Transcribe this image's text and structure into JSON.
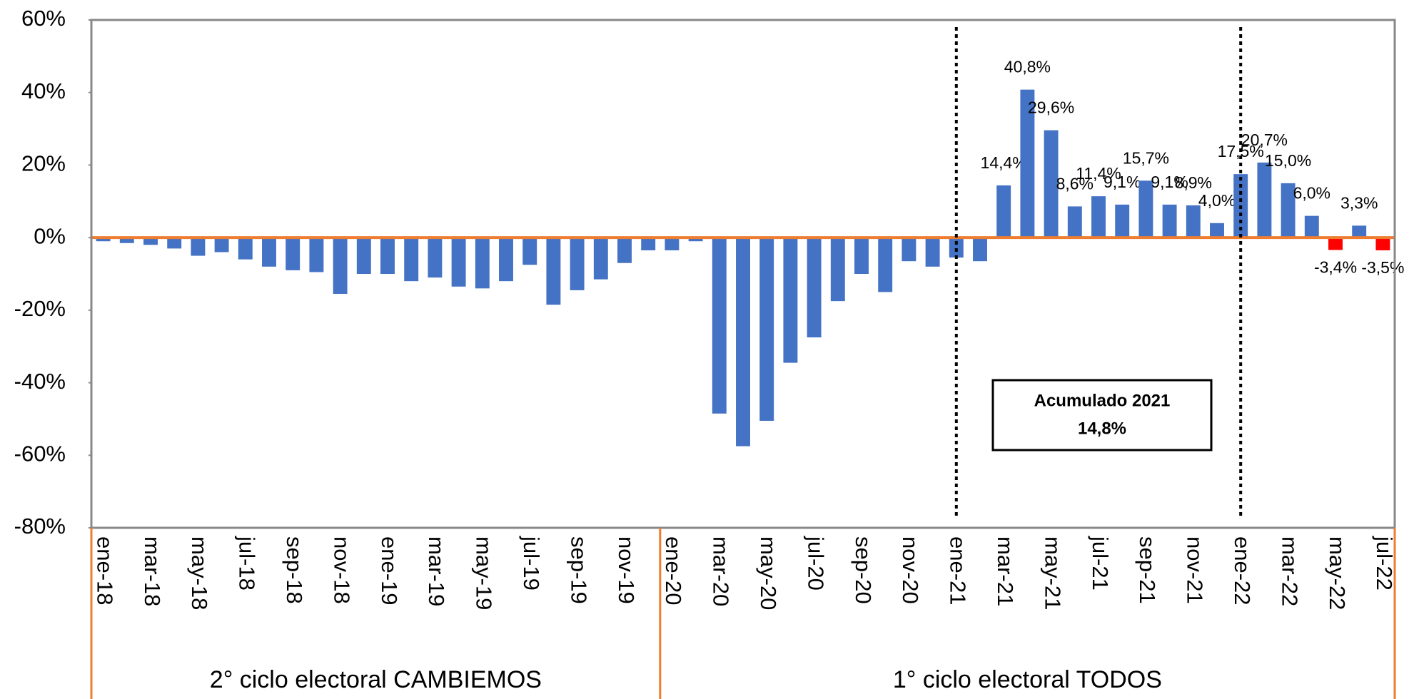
{
  "chart_data": {
    "type": "bar",
    "categories": [
      "ene-18",
      null,
      "mar-18",
      null,
      "may-18",
      null,
      "jul-18",
      null,
      "sep-18",
      null,
      "nov-18",
      null,
      "ene-19",
      null,
      "mar-19",
      null,
      "may-19",
      null,
      "jul-19",
      null,
      "sep-19",
      null,
      "nov-19",
      null,
      "ene-20",
      null,
      "mar-20",
      null,
      "may-20",
      null,
      "jul-20",
      null,
      "sep-20",
      null,
      "nov-20",
      null,
      "ene-21",
      null,
      "mar-21",
      null,
      "may-21",
      null,
      "jul-21",
      null,
      "sep-21",
      null,
      "nov-21",
      null,
      "ene-22",
      null,
      "mar-22",
      null,
      "may-22",
      null,
      "jul-22"
    ],
    "values": [
      -1,
      -1.5,
      -2,
      -3,
      -5,
      -4,
      -6,
      -8,
      -9,
      -9.5,
      -15.5,
      -10,
      -10,
      -12,
      -11,
      -13.5,
      -14,
      -12,
      -7.5,
      -18.5,
      -14.5,
      -11.5,
      -7,
      -3.5,
      -3.5,
      -1,
      -48.5,
      -57.5,
      -50.5,
      -34.5,
      -27.5,
      -17.5,
      -10,
      -15,
      -6.5,
      -8,
      -5.5,
      -6.5,
      14.4,
      40.8,
      29.6,
      8.6,
      11.4,
      9.1,
      15.7,
      9.1,
      8.9,
      4.0,
      17.5,
      20.7,
      15.0,
      6.0,
      -3.4,
      3.3,
      -3.5
    ],
    "value_labels": [
      null,
      null,
      null,
      null,
      null,
      null,
      null,
      null,
      null,
      null,
      null,
      null,
      null,
      null,
      null,
      null,
      null,
      null,
      null,
      null,
      null,
      null,
      null,
      null,
      null,
      null,
      null,
      null,
      null,
      null,
      null,
      null,
      null,
      null,
      null,
      null,
      null,
      null,
      "14,4%",
      "40,8%",
      "29,6%",
      "8,6%",
      "11,4%",
      "9,1%",
      "15,7%",
      "9,1%",
      "8,9%",
      "4,0%",
      "17,5%",
      "20,7%",
      "15,0%",
      "6,0%",
      "-3,4%",
      "3,3%",
      "-3,5%"
    ],
    "colors": [
      "#4472c4",
      "#4472c4",
      "#4472c4",
      "#4472c4",
      "#4472c4",
      "#4472c4",
      "#4472c4",
      "#4472c4",
      "#4472c4",
      "#4472c4",
      "#4472c4",
      "#4472c4",
      "#4472c4",
      "#4472c4",
      "#4472c4",
      "#4472c4",
      "#4472c4",
      "#4472c4",
      "#4472c4",
      "#4472c4",
      "#4472c4",
      "#4472c4",
      "#4472c4",
      "#4472c4",
      "#4472c4",
      "#4472c4",
      "#4472c4",
      "#4472c4",
      "#4472c4",
      "#4472c4",
      "#4472c4",
      "#4472c4",
      "#4472c4",
      "#4472c4",
      "#4472c4",
      "#4472c4",
      "#4472c4",
      "#4472c4",
      "#4472c4",
      "#4472c4",
      "#4472c4",
      "#4472c4",
      "#4472c4",
      "#4472c4",
      "#4472c4",
      "#4472c4",
      "#4472c4",
      "#4472c4",
      "#4472c4",
      "#4472c4",
      "#4472c4",
      "#4472c4",
      "#ff0000",
      "#4472c4",
      "#ff0000"
    ],
    "ylim": [
      -80,
      60
    ],
    "yticks": [
      {
        "value": -80,
        "label": "-80%"
      },
      {
        "value": -60,
        "label": "-60%"
      },
      {
        "value": -40,
        "label": "-40%"
      },
      {
        "value": -20,
        "label": "-20%"
      },
      {
        "value": 0,
        "label": "0%"
      },
      {
        "value": 20,
        "label": "20%"
      },
      {
        "value": 40,
        "label": "40%"
      },
      {
        "value": 60,
        "label": "60%"
      }
    ],
    "zero_line_color": "#ed7d31",
    "vlines": [
      "ene-21",
      "ene-22"
    ],
    "annotation": {
      "lines": [
        "Acumulado 2021",
        "14,8%"
      ]
    },
    "periods": [
      {
        "label": "2° ciclo electoral CAMBIEMOS",
        "start": "ene-18"
      },
      {
        "label": "1° ciclo electoral TODOS",
        "start": "ene-20"
      }
    ]
  }
}
